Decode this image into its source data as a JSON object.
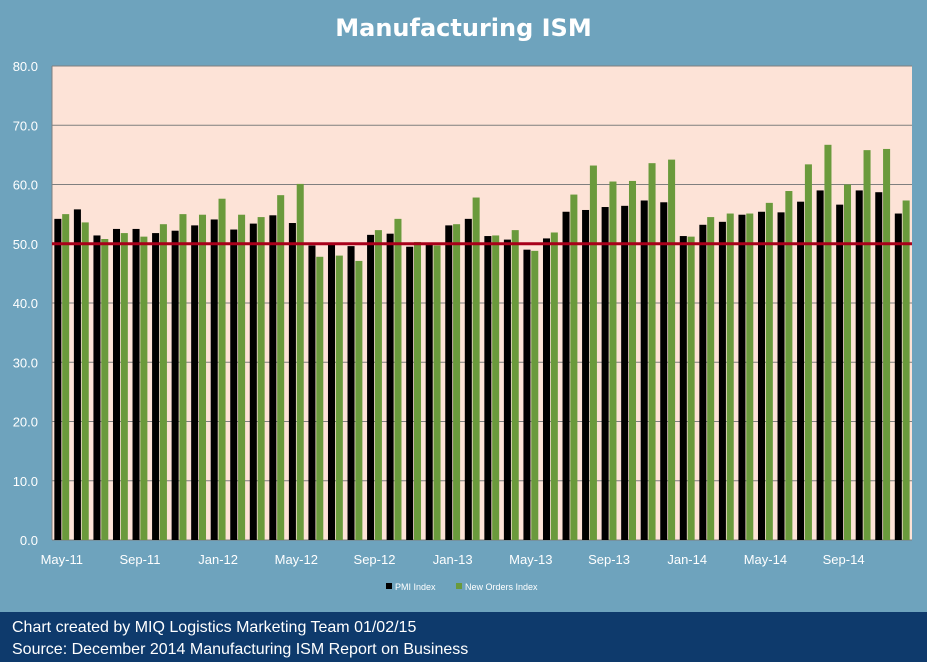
{
  "chart_data": {
    "type": "bar",
    "title": "Manufacturing ISM",
    "xlabel": "",
    "ylabel": "",
    "ylim": [
      0,
      80
    ],
    "yticks": [
      "0.0",
      "10.0",
      "20.0",
      "30.0",
      "40.0",
      "50.0",
      "60.0",
      "70.0",
      "80.0"
    ],
    "xtick_labels": [
      "May-11",
      "Sep-11",
      "Jan-12",
      "May-12",
      "Sep-12",
      "Jan-13",
      "May-13",
      "Sep-13",
      "Jan-14",
      "May-14",
      "Sep-14"
    ],
    "categories": [
      "May-11",
      "Jun-11",
      "Jul-11",
      "Aug-11",
      "Sep-11",
      "Oct-11",
      "Nov-11",
      "Dec-11",
      "Jan-12",
      "Feb-12",
      "Mar-12",
      "Apr-12",
      "May-12",
      "Jun-12",
      "Jul-12",
      "Aug-12",
      "Sep-12",
      "Oct-12",
      "Nov-12",
      "Dec-12",
      "Jan-13",
      "Feb-13",
      "Mar-13",
      "Apr-13",
      "May-13",
      "Jun-13",
      "Jul-13",
      "Aug-13",
      "Sep-13",
      "Oct-13",
      "Nov-13",
      "Dec-13",
      "Jan-14",
      "Feb-14",
      "Mar-14",
      "Apr-14",
      "May-14",
      "Jun-14",
      "Jul-14",
      "Aug-14",
      "Sep-14",
      "Oct-14",
      "Nov-14",
      "Dec-14"
    ],
    "series": [
      {
        "name": "PMI Index",
        "color": "#000000",
        "values": [
          54.2,
          55.8,
          51.4,
          52.5,
          52.5,
          51.8,
          52.2,
          53.1,
          54.1,
          52.4,
          53.4,
          54.8,
          53.5,
          49.7,
          49.8,
          49.6,
          51.5,
          51.7,
          49.5,
          50.2,
          53.1,
          54.2,
          51.3,
          50.7,
          49.0,
          50.9,
          55.4,
          55.7,
          56.2,
          56.4,
          57.3,
          57.0,
          51.3,
          53.2,
          53.7,
          54.9,
          55.4,
          55.3,
          57.1,
          59.0,
          56.6,
          59.0,
          58.7,
          55.1
        ]
      },
      {
        "name": "New Orders Index",
        "color": "#6a9a3c",
        "values": [
          55.0,
          53.6,
          50.8,
          51.8,
          51.2,
          53.3,
          55.0,
          54.9,
          57.6,
          54.9,
          54.5,
          58.2,
          60.1,
          47.8,
          48.0,
          47.1,
          52.3,
          54.2,
          50.3,
          49.7,
          53.3,
          57.8,
          51.4,
          52.3,
          48.8,
          51.9,
          58.3,
          63.2,
          60.5,
          60.6,
          63.6,
          64.2,
          51.2,
          54.5,
          55.1,
          55.1,
          56.9,
          58.9,
          63.4,
          66.7,
          60.0,
          65.8,
          66.0,
          57.3
        ]
      }
    ],
    "reference_line": {
      "value": 50,
      "color": "#a8001a"
    },
    "legend": "bottom",
    "grid": true,
    "plot_background": "#fde3d7"
  },
  "footer": {
    "line1": "Chart created by MIQ Logistics Marketing Team 01/02/15",
    "line2": "Source: December 2014 Manufacturing ISM Report on Business"
  }
}
